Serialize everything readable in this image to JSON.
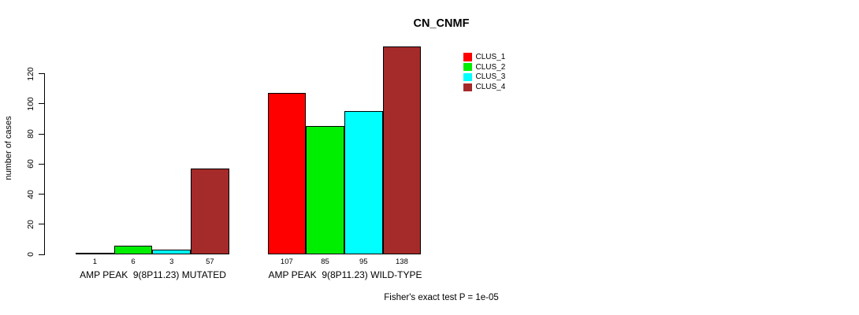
{
  "chart_data": {
    "type": "bar",
    "title": "CN_CNMF",
    "ylabel": "number of cases",
    "xlabel": "",
    "note": "Fisher's exact test P = 1e-05",
    "grid": false,
    "legend_position": "top-right-inside",
    "ylim": [
      0,
      140
    ],
    "y_ticks": [
      0,
      20,
      40,
      60,
      80,
      100,
      120
    ],
    "series": [
      {
        "name": "CLUS_1",
        "color": "#FF0000"
      },
      {
        "name": "CLUS_2",
        "color": "#00EE00"
      },
      {
        "name": "CLUS_3",
        "color": "#00FFFF"
      },
      {
        "name": "CLUS_4",
        "color": "#A52A2A"
      }
    ],
    "groups": [
      {
        "label": "AMP PEAK  9(8P11.23) MUTATED",
        "values": [
          1,
          6,
          3,
          57
        ]
      },
      {
        "label": "AMP PEAK  9(8P11.23) WILD-TYPE",
        "values": [
          107,
          85,
          95,
          138
        ]
      }
    ]
  }
}
